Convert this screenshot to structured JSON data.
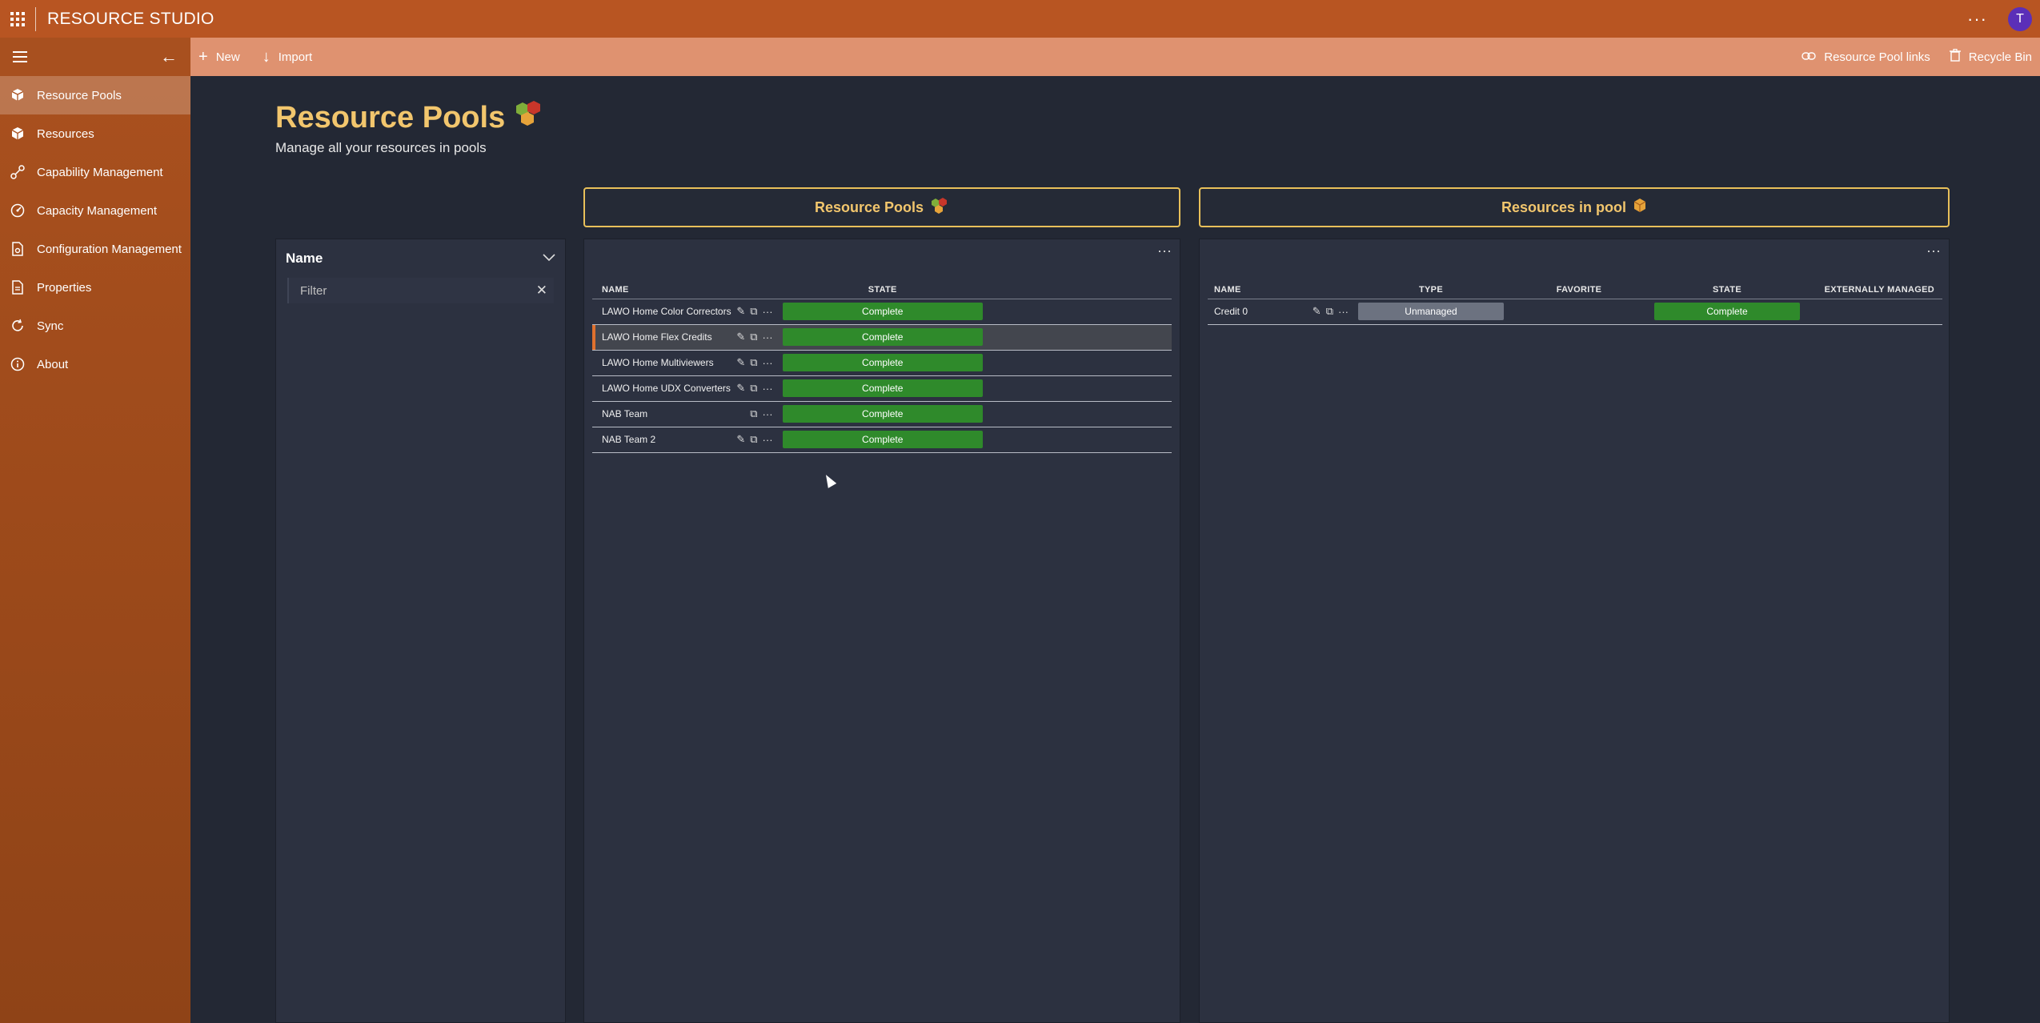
{
  "app": {
    "title": "RESOURCE STUDIO",
    "avatar_initial": "T",
    "more": "···"
  },
  "commands": {
    "new_label": "New",
    "import_label": "Import",
    "pool_links_label": "Resource Pool links",
    "recycle_label": "Recycle Bin"
  },
  "sidebar": {
    "items": [
      {
        "label": "Resource Pools",
        "icon": "cubes-icon"
      },
      {
        "label": "Resources",
        "icon": "cube-icon"
      },
      {
        "label": "Capability Management",
        "icon": "connection-icon"
      },
      {
        "label": "Capacity Management",
        "icon": "gauge-icon"
      },
      {
        "label": "Configuration Management",
        "icon": "document-settings-icon"
      },
      {
        "label": "Properties",
        "icon": "list-icon"
      },
      {
        "label": "Sync",
        "icon": "sync-icon"
      },
      {
        "label": "About",
        "icon": "info-icon"
      }
    ]
  },
  "page": {
    "title": "Resource Pools",
    "subtitle": "Manage all your resources in pools"
  },
  "filter": {
    "title": "Name",
    "placeholder": "Filter"
  },
  "pools_panel": {
    "header": "Resource Pools",
    "columns": {
      "name": "NAME",
      "state": "STATE"
    },
    "rows": [
      {
        "name": "LAWO Home Color Correctors",
        "state": "Complete",
        "editable": true
      },
      {
        "name": "LAWO Home Flex Credits",
        "state": "Complete",
        "editable": true,
        "selected": true
      },
      {
        "name": "LAWO Home Multiviewers",
        "state": "Complete",
        "editable": true
      },
      {
        "name": "LAWO Home UDX Converters",
        "state": "Complete",
        "editable": true
      },
      {
        "name": "NAB Team",
        "state": "Complete",
        "editable": false
      },
      {
        "name": "NAB Team 2",
        "state": "Complete",
        "editable": true
      }
    ]
  },
  "resources_panel": {
    "header": "Resources in pool",
    "columns": {
      "name": "NAME",
      "type": "TYPE",
      "favorite": "FAVORITE",
      "state": "STATE",
      "external": "EXTERNALLY MANAGED"
    },
    "rows": [
      {
        "name": "Credit 0",
        "type": "Unmanaged",
        "favorite": "",
        "state": "Complete",
        "external": ""
      }
    ]
  },
  "colors": {
    "accent": "#b85522",
    "title_gold": "#f2c66d",
    "state_green": "#2f8a2b"
  }
}
